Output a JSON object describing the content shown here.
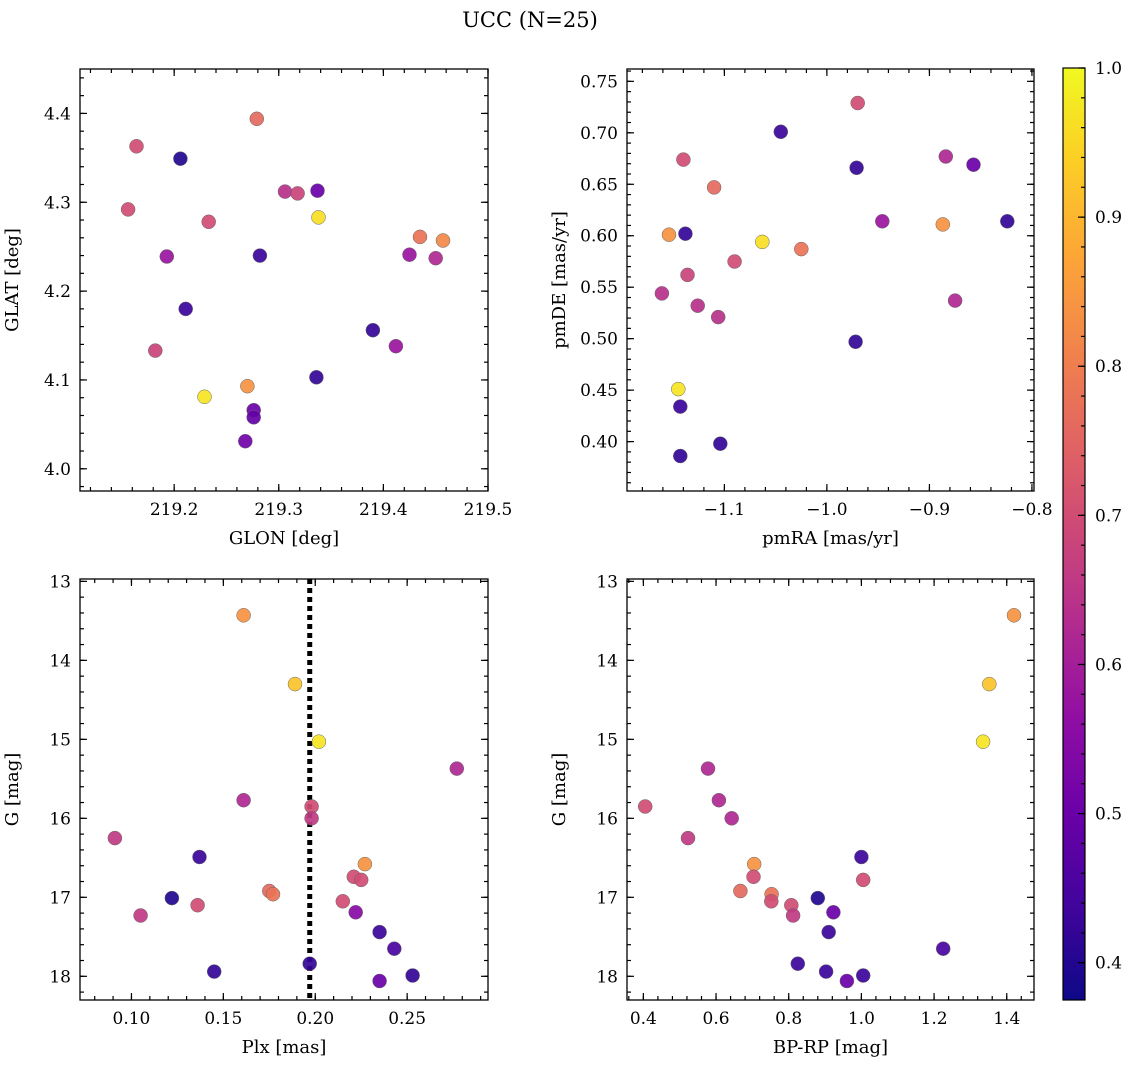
{
  "figure": {
    "title": "UCC (N=25)",
    "colormap": "plasma",
    "colorbar": {
      "min": 0.375,
      "max": 1.0,
      "ticks": [
        0.4,
        0.5,
        0.6,
        0.7,
        0.8,
        0.9,
        1.0
      ],
      "tick_labels": [
        "0.4",
        "0.5",
        "0.6",
        "0.7",
        "0.8",
        "0.9",
        "1.0"
      ],
      "placement": "right"
    }
  },
  "chart_data": [
    {
      "type": "scatter",
      "xlabel": "GLON [deg]",
      "ylabel": "GLAT [deg]",
      "xlim": [
        219.11,
        219.5
      ],
      "ylim": [
        3.975,
        4.45
      ],
      "xticks": [
        219.2,
        219.3,
        219.4,
        219.5
      ],
      "xtick_labels": [
        "219.2",
        "219.3",
        "219.4",
        "219.5"
      ],
      "yticks": [
        4.0,
        4.1,
        4.2,
        4.3,
        4.4
      ],
      "ytick_labels": [
        "4.0",
        "4.1",
        "4.2",
        "4.3",
        "4.4"
      ],
      "y_inverted": false,
      "points": [
        {
          "x": 219.279,
          "y": 4.394,
          "c": 0.76
        },
        {
          "x": 219.164,
          "y": 4.363,
          "c": 0.7
        },
        {
          "x": 219.206,
          "y": 4.349,
          "c": 0.4
        },
        {
          "x": 219.156,
          "y": 4.292,
          "c": 0.7
        },
        {
          "x": 219.306,
          "y": 4.312,
          "c": 0.64
        },
        {
          "x": 219.318,
          "y": 4.31,
          "c": 0.68
        },
        {
          "x": 219.337,
          "y": 4.313,
          "c": 0.5
        },
        {
          "x": 219.338,
          "y": 4.283,
          "c": 0.96
        },
        {
          "x": 219.233,
          "y": 4.278,
          "c": 0.7
        },
        {
          "x": 219.193,
          "y": 4.239,
          "c": 0.58
        },
        {
          "x": 219.282,
          "y": 4.24,
          "c": 0.43
        },
        {
          "x": 219.435,
          "y": 4.261,
          "c": 0.78
        },
        {
          "x": 219.457,
          "y": 4.257,
          "c": 0.82
        },
        {
          "x": 219.425,
          "y": 4.241,
          "c": 0.58
        },
        {
          "x": 219.45,
          "y": 4.237,
          "c": 0.62
        },
        {
          "x": 219.211,
          "y": 4.18,
          "c": 0.43
        },
        {
          "x": 219.39,
          "y": 4.156,
          "c": 0.42
        },
        {
          "x": 219.182,
          "y": 4.133,
          "c": 0.68
        },
        {
          "x": 219.412,
          "y": 4.138,
          "c": 0.58
        },
        {
          "x": 219.336,
          "y": 4.103,
          "c": 0.42
        },
        {
          "x": 219.27,
          "y": 4.093,
          "c": 0.84
        },
        {
          "x": 219.229,
          "y": 4.081,
          "c": 0.97
        },
        {
          "x": 219.276,
          "y": 4.066,
          "c": 0.5
        },
        {
          "x": 219.276,
          "y": 4.058,
          "c": 0.49
        },
        {
          "x": 219.268,
          "y": 4.031,
          "c": 0.51
        }
      ]
    },
    {
      "type": "scatter",
      "xlabel": "pmRA [mas/yr]",
      "ylabel": "pmDE [mas/yr]",
      "xlim": [
        -1.195,
        -0.798
      ],
      "ylim": [
        0.352,
        0.762
      ],
      "xticks": [
        -1.1,
        -1.0,
        -0.9,
        -0.8
      ],
      "xtick_labels": [
        "−1.1",
        "−1.0",
        "−0.9",
        "−0.8"
      ],
      "yticks": [
        0.4,
        0.45,
        0.5,
        0.55,
        0.6,
        0.65,
        0.7,
        0.75
      ],
      "ytick_labels": [
        "0.40",
        "0.45",
        "0.50",
        "0.55",
        "0.60",
        "0.65",
        "0.70",
        "0.75"
      ],
      "y_inverted": false,
      "points": [
        {
          "x": -0.97,
          "y": 0.729,
          "c": 0.7
        },
        {
          "x": -1.045,
          "y": 0.701,
          "c": 0.43
        },
        {
          "x": -1.14,
          "y": 0.674,
          "c": 0.7
        },
        {
          "x": -0.971,
          "y": 0.666,
          "c": 0.42
        },
        {
          "x": -0.884,
          "y": 0.677,
          "c": 0.62
        },
        {
          "x": -0.857,
          "y": 0.669,
          "c": 0.5
        },
        {
          "x": -1.11,
          "y": 0.647,
          "c": 0.76
        },
        {
          "x": -0.946,
          "y": 0.614,
          "c": 0.58
        },
        {
          "x": -0.824,
          "y": 0.614,
          "c": 0.42
        },
        {
          "x": -0.887,
          "y": 0.611,
          "c": 0.84
        },
        {
          "x": -1.154,
          "y": 0.601,
          "c": 0.84
        },
        {
          "x": -1.138,
          "y": 0.602,
          "c": 0.42
        },
        {
          "x": -1.063,
          "y": 0.594,
          "c": 0.96
        },
        {
          "x": -1.025,
          "y": 0.587,
          "c": 0.78
        },
        {
          "x": -1.09,
          "y": 0.575,
          "c": 0.7
        },
        {
          "x": -1.136,
          "y": 0.562,
          "c": 0.68
        },
        {
          "x": -1.161,
          "y": 0.544,
          "c": 0.64
        },
        {
          "x": -0.875,
          "y": 0.537,
          "c": 0.62
        },
        {
          "x": -1.126,
          "y": 0.532,
          "c": 0.64
        },
        {
          "x": -1.106,
          "y": 0.521,
          "c": 0.64
        },
        {
          "x": -0.972,
          "y": 0.497,
          "c": 0.42
        },
        {
          "x": -1.145,
          "y": 0.451,
          "c": 0.97
        },
        {
          "x": -1.143,
          "y": 0.434,
          "c": 0.43
        },
        {
          "x": -1.104,
          "y": 0.398,
          "c": 0.42
        },
        {
          "x": -1.143,
          "y": 0.386,
          "c": 0.42
        }
      ]
    },
    {
      "type": "scatter",
      "xlabel": "Plx [mas]",
      "ylabel": "G [mag]",
      "xlim": [
        0.072,
        0.294
      ],
      "ylim": [
        18.3,
        12.97
      ],
      "xticks": [
        0.1,
        0.15,
        0.2,
        0.25
      ],
      "xtick_labels": [
        "0.10",
        "0.15",
        "0.20",
        "0.25"
      ],
      "yticks": [
        13,
        14,
        15,
        16,
        17,
        18
      ],
      "ytick_labels": [
        "13",
        "14",
        "15",
        "16",
        "17",
        "18"
      ],
      "y_inverted": true,
      "vline": {
        "x": 0.197,
        "style": "dotted"
      },
      "points": [
        {
          "x": 0.161,
          "y": 13.43,
          "c": 0.84
        },
        {
          "x": 0.189,
          "y": 14.3,
          "c": 0.92
        },
        {
          "x": 0.202,
          "y": 15.03,
          "c": 0.97
        },
        {
          "x": 0.277,
          "y": 15.37,
          "c": 0.62
        },
        {
          "x": 0.161,
          "y": 15.77,
          "c": 0.62
        },
        {
          "x": 0.198,
          "y": 15.85,
          "c": 0.7
        },
        {
          "x": 0.198,
          "y": 16.0,
          "c": 0.66
        },
        {
          "x": 0.091,
          "y": 16.25,
          "c": 0.66
        },
        {
          "x": 0.137,
          "y": 16.49,
          "c": 0.43
        },
        {
          "x": 0.227,
          "y": 16.58,
          "c": 0.84
        },
        {
          "x": 0.221,
          "y": 16.74,
          "c": 0.7
        },
        {
          "x": 0.225,
          "y": 16.78,
          "c": 0.7
        },
        {
          "x": 0.175,
          "y": 16.92,
          "c": 0.76
        },
        {
          "x": 0.177,
          "y": 16.96,
          "c": 0.78
        },
        {
          "x": 0.122,
          "y": 17.01,
          "c": 0.4
        },
        {
          "x": 0.215,
          "y": 17.05,
          "c": 0.7
        },
        {
          "x": 0.136,
          "y": 17.1,
          "c": 0.7
        },
        {
          "x": 0.222,
          "y": 17.19,
          "c": 0.55
        },
        {
          "x": 0.105,
          "y": 17.23,
          "c": 0.66
        },
        {
          "x": 0.235,
          "y": 17.44,
          "c": 0.43
        },
        {
          "x": 0.243,
          "y": 17.65,
          "c": 0.45
        },
        {
          "x": 0.197,
          "y": 17.84,
          "c": 0.42
        },
        {
          "x": 0.145,
          "y": 17.94,
          "c": 0.42
        },
        {
          "x": 0.253,
          "y": 17.99,
          "c": 0.42
        },
        {
          "x": 0.235,
          "y": 18.06,
          "c": 0.5
        }
      ]
    },
    {
      "type": "scatter",
      "xlabel": "BP-RP [mag]",
      "ylabel": "G [mag]",
      "xlim": [
        0.355,
        1.475
      ],
      "ylim": [
        18.3,
        12.97
      ],
      "xticks": [
        0.4,
        0.6,
        0.8,
        1.0,
        1.2,
        1.4
      ],
      "xtick_labels": [
        "0.4",
        "0.6",
        "0.8",
        "1.0",
        "1.2",
        "1.4"
      ],
      "yticks": [
        13,
        14,
        15,
        16,
        17,
        18
      ],
      "ytick_labels": [
        "13",
        "14",
        "15",
        "16",
        "17",
        "18"
      ],
      "y_inverted": true,
      "points": [
        {
          "x": 1.42,
          "y": 13.43,
          "c": 0.84
        },
        {
          "x": 1.352,
          "y": 14.3,
          "c": 0.92
        },
        {
          "x": 1.335,
          "y": 15.03,
          "c": 0.97
        },
        {
          "x": 0.578,
          "y": 15.37,
          "c": 0.62
        },
        {
          "x": 0.608,
          "y": 15.77,
          "c": 0.62
        },
        {
          "x": 0.405,
          "y": 15.85,
          "c": 0.7
        },
        {
          "x": 0.643,
          "y": 16.0,
          "c": 0.62
        },
        {
          "x": 0.523,
          "y": 16.25,
          "c": 0.66
        },
        {
          "x": 1.0,
          "y": 16.49,
          "c": 0.43
        },
        {
          "x": 0.705,
          "y": 16.58,
          "c": 0.84
        },
        {
          "x": 0.703,
          "y": 16.74,
          "c": 0.7
        },
        {
          "x": 1.005,
          "y": 16.78,
          "c": 0.7
        },
        {
          "x": 0.667,
          "y": 16.92,
          "c": 0.76
        },
        {
          "x": 0.753,
          "y": 16.96,
          "c": 0.78
        },
        {
          "x": 0.88,
          "y": 17.01,
          "c": 0.4
        },
        {
          "x": 0.752,
          "y": 17.05,
          "c": 0.7
        },
        {
          "x": 0.807,
          "y": 17.1,
          "c": 0.7
        },
        {
          "x": 0.923,
          "y": 17.19,
          "c": 0.5
        },
        {
          "x": 0.812,
          "y": 17.23,
          "c": 0.66
        },
        {
          "x": 0.91,
          "y": 17.44,
          "c": 0.43
        },
        {
          "x": 1.225,
          "y": 17.65,
          "c": 0.45
        },
        {
          "x": 0.825,
          "y": 17.84,
          "c": 0.43
        },
        {
          "x": 0.903,
          "y": 17.94,
          "c": 0.43
        },
        {
          "x": 1.005,
          "y": 17.99,
          "c": 0.43
        },
        {
          "x": 0.96,
          "y": 18.06,
          "c": 0.5
        }
      ]
    }
  ]
}
